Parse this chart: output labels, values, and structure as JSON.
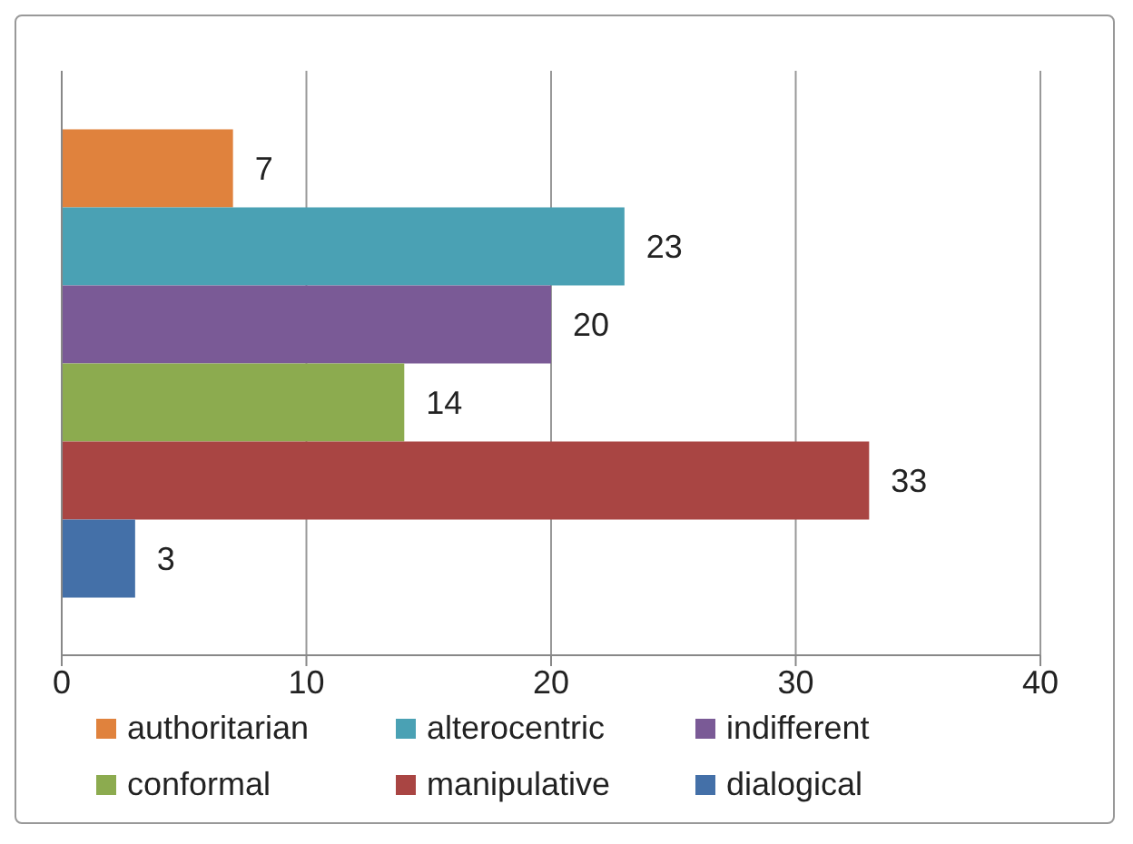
{
  "chart_data": {
    "type": "bar",
    "orientation": "horizontal",
    "categories": [
      null
    ],
    "series": [
      {
        "name": "authoritarian",
        "color": "#e0823d",
        "values": [
          7
        ]
      },
      {
        "name": "alterocentric",
        "color": "#4aa1b4",
        "values": [
          23
        ]
      },
      {
        "name": "indifferent",
        "color": "#7a5a96",
        "values": [
          20
        ]
      },
      {
        "name": "conformal",
        "color": "#8cab4f",
        "values": [
          14
        ]
      },
      {
        "name": "manipulative",
        "color": "#a94543",
        "values": [
          33
        ]
      },
      {
        "name": "dialogical",
        "color": "#4470a8",
        "values": [
          3
        ]
      }
    ],
    "xlim": [
      0,
      40
    ],
    "xticks": [
      0,
      10,
      20,
      30,
      40
    ],
    "grid": "x",
    "legend": "bottom",
    "data_labels": true
  }
}
